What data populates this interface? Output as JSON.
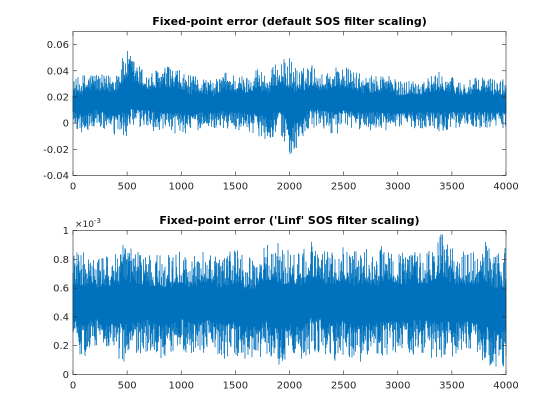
{
  "chart_data": [
    {
      "type": "line",
      "title": "Fixed-point error (default SOS filter scaling)",
      "xlim": [
        0,
        4000
      ],
      "ylim": [
        -0.04,
        0.07
      ],
      "xticks": [
        "0",
        "500",
        "1000",
        "1500",
        "2000",
        "2500",
        "3000",
        "3500",
        "4000"
      ],
      "yticks": [
        "-0.04",
        "-0.02",
        "0",
        "0.02",
        "0.04",
        "0.06"
      ],
      "grid": false,
      "series_color": "#0072BD",
      "series": [
        {
          "x_step": 100,
          "min": [
            -0.003,
            -0.009,
            -0.004,
            -0.006,
            -0.012,
            -0.011,
            -0.006,
            -0.004,
            -0.009,
            -0.01,
            -0.008,
            -0.008,
            -0.004,
            -0.004,
            -0.005,
            -0.006,
            -0.005,
            -0.01,
            -0.013,
            -0.008,
            -0.025,
            -0.018,
            -0.006,
            -0.004,
            -0.009,
            -0.007,
            -0.005,
            -0.006,
            -0.005,
            -0.008,
            -0.003,
            -0.004,
            -0.004,
            -0.004,
            -0.007,
            -0.004,
            -0.003,
            -0.003,
            -0.005,
            -0.004
          ],
          "max": [
            0.033,
            0.038,
            0.04,
            0.036,
            0.042,
            0.056,
            0.046,
            0.038,
            0.043,
            0.044,
            0.04,
            0.036,
            0.036,
            0.032,
            0.04,
            0.038,
            0.036,
            0.044,
            0.039,
            0.048,
            0.051,
            0.041,
            0.046,
            0.038,
            0.044,
            0.044,
            0.04,
            0.036,
            0.037,
            0.04,
            0.032,
            0.034,
            0.034,
            0.036,
            0.04,
            0.036,
            0.032,
            0.034,
            0.037,
            0.034
          ]
        }
      ]
    },
    {
      "type": "line",
      "title": "Fixed-point error ('Linf' SOS filter scaling)",
      "xlim": [
        0,
        4000
      ],
      "ylim": [
        0,
        0.001
      ],
      "scale_exponent": "×10^-3",
      "exponent_base": "×10",
      "exponent_power": "-3",
      "xticks": [
        "0",
        "500",
        "1000",
        "1500",
        "2000",
        "2500",
        "3000",
        "3500",
        "4000"
      ],
      "yticks": [
        "0",
        "0.2",
        "0.4",
        "0.6",
        "0.8",
        "1"
      ],
      "grid": false,
      "series_color": "#0072BD",
      "series": [
        {
          "x_step": 100,
          "min": [
            0.00018,
            0.0001,
            0.00019,
            0.00017,
            0.00012,
            7e-05,
            0.00013,
            0.00016,
            0.00011,
            0.00012,
            0.00016,
            0.00013,
            0.00015,
            0.00016,
            0.0001,
            0.00013,
            0.0001,
            9e-05,
            0.00012,
            2e-05,
            9e-05,
            6e-05,
            0.00014,
            0.00016,
            9e-05,
            0.00012,
            8e-05,
            9e-05,
            0.00012,
            0.0001,
            0.00014,
            0.00012,
            0.00016,
            0.00012,
            8e-05,
            0.00011,
            0.00014,
            0.00012,
            5e-05,
            2e-05
          ],
          "max": [
            0.00085,
            0.00086,
            0.0008,
            0.00082,
            0.00086,
            0.00093,
            0.00086,
            0.00084,
            0.00084,
            0.00084,
            0.00086,
            0.00082,
            0.00086,
            0.00082,
            0.00084,
            0.00088,
            0.00082,
            0.00084,
            0.00092,
            0.00092,
            0.00088,
            0.00086,
            0.00094,
            0.00086,
            0.00088,
            0.00092,
            0.00086,
            0.0009,
            0.00084,
            0.00094,
            0.00084,
            0.00088,
            0.00086,
            0.00088,
            0.00099,
            0.00088,
            0.00086,
            0.00086,
            0.00094,
            0.00088
          ]
        }
      ]
    }
  ]
}
